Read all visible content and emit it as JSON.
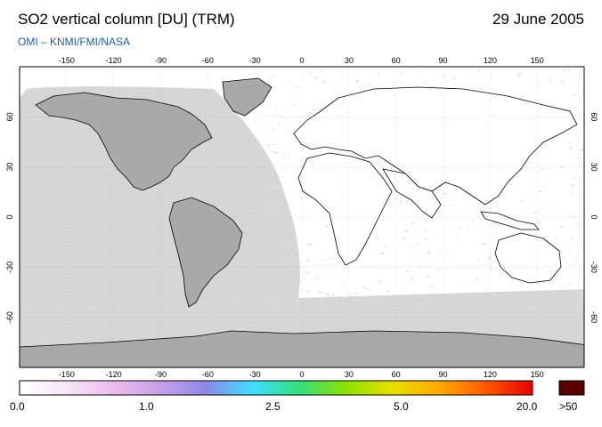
{
  "header": {
    "title": "SO2 vertical column [DU] (TRM)",
    "date": "29 June 2005",
    "credit": "OMI  –  KNMI/FMI/NASA"
  },
  "map": {
    "lon_ticks": [
      "-150",
      "-120",
      "-90",
      "-60",
      "-30",
      "0",
      "30",
      "60",
      "90",
      "120",
      "150"
    ],
    "lat_ticks": [
      "60",
      "30",
      "0",
      "-30",
      "-60"
    ],
    "colors": {
      "no_data": "#a9a9a9",
      "night_zone": "#d6d6d6",
      "ocean": "#ffffff",
      "coastline": "#000000"
    }
  },
  "colorbar": {
    "labels": [
      "0.0",
      "1.0",
      "2.5",
      "5.0",
      "20.0",
      ">50"
    ],
    "gradient_colors": [
      "#ffffff",
      "#f6e6f6",
      "#eebbee",
      "#c9a0ea",
      "#8a8ae8",
      "#3fdfff",
      "#33e07a",
      "#8fe000",
      "#e6e000",
      "#ffaa00",
      "#ff5a00",
      "#e80000"
    ],
    "overflow_color": "#5a0000"
  }
}
